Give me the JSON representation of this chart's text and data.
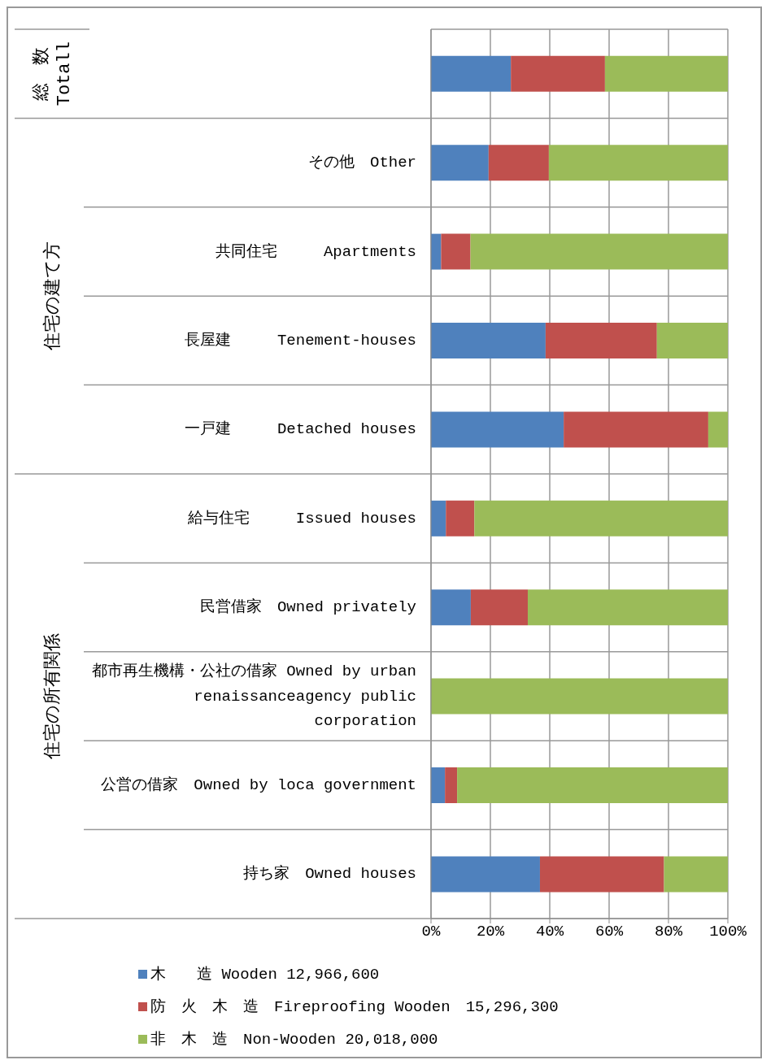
{
  "chart_data": {
    "type": "bar",
    "orientation": "horizontal",
    "stacked": true,
    "categories": [
      null,
      "その他　Other",
      "共同住宅　　　Apartments",
      "長屋建　　　Tenement-houses",
      "一戸建　　　Detached houses",
      "給与住宅　　　Issued houses",
      "民営借家　Owned privately",
      "都市再生機構・公社の借家 Owned by urban renaissanceagency public corporation",
      "公営の借家　Owned by loca government",
      "持ち家　Owned houses"
    ],
    "series": [
      {
        "name": "木　　造 Wooden 12,966,600",
        "color": "#4f81bd",
        "values": [
          26.9,
          19.4,
          3.4,
          38.6,
          44.7,
          5.0,
          13.4,
          0,
          4.7,
          36.7
        ]
      },
      {
        "name": "防　火　木　造　Fireproofing Wooden　15,296,300",
        "color": "#c0504d",
        "values": [
          31.7,
          20.3,
          9.9,
          37.5,
          48.7,
          9.6,
          19.2,
          0,
          4.1,
          41.8
        ]
      },
      {
        "name": "非　木　造　Non-Wooden 20,018,000",
        "color": "#9bbb59",
        "values": [
          41.4,
          60.3,
          86.7,
          23.9,
          6.6,
          85.4,
          67.4,
          100,
          91.2,
          21.5
        ]
      }
    ],
    "xlim": [
      0,
      100
    ],
    "xticks": [
      {
        "value": 0,
        "label": "0%"
      },
      {
        "value": 20,
        "label": "20%"
      },
      {
        "value": 40,
        "label": "40%"
      },
      {
        "value": 60,
        "label": "60%"
      },
      {
        "value": 80,
        "label": "80%"
      },
      {
        "value": 100,
        "label": "100%"
      }
    ],
    "annotations": [
      "総　数 Totall",
      "住宅の建て方",
      "住宅の所有関係"
    ],
    "grid": true,
    "legend": "bottom"
  }
}
